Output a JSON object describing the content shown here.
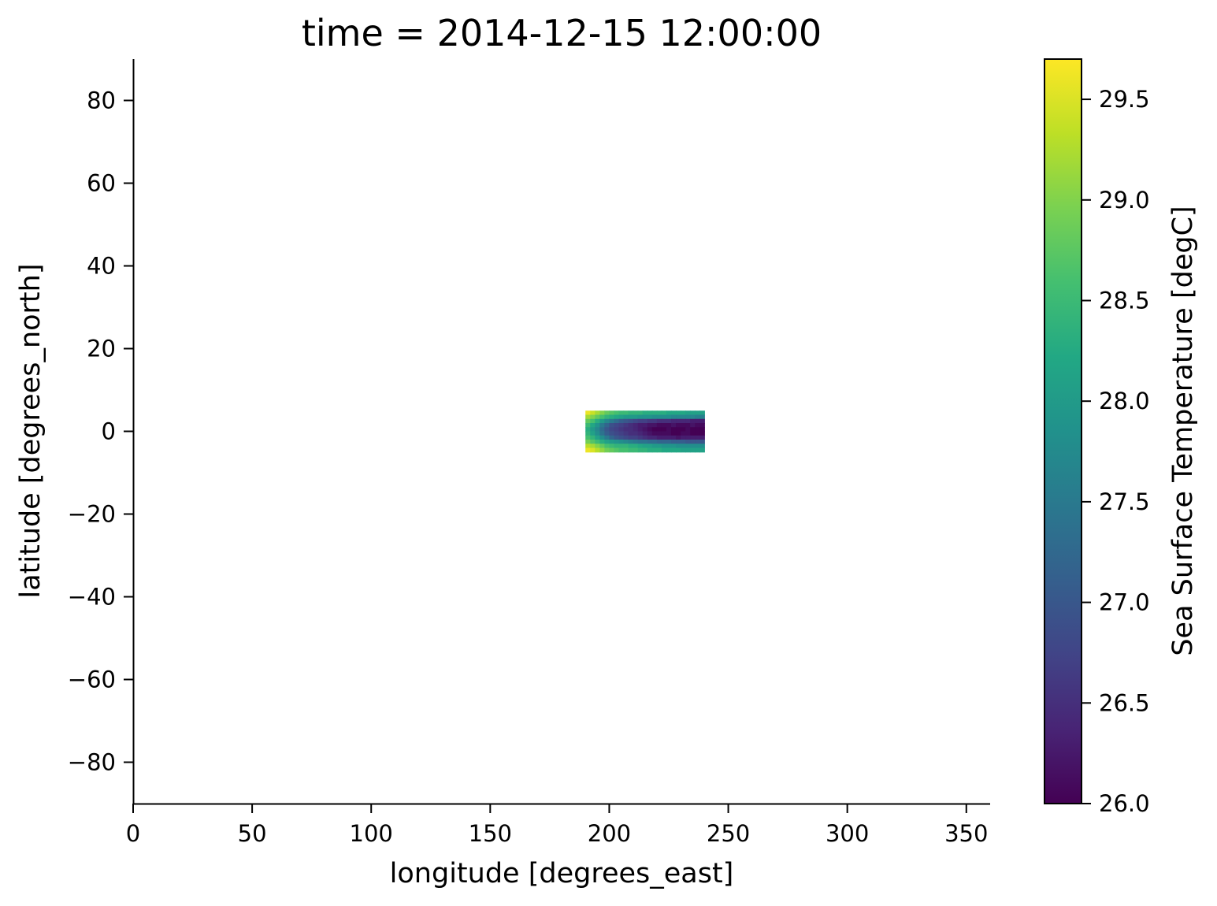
{
  "chart_data": {
    "type": "heatmap",
    "title": "time = 2014-12-15 12:00:00",
    "xlabel": "longitude [degrees_east]",
    "ylabel": "latitude [degrees_north]",
    "xlim": [
      0,
      360
    ],
    "ylim": [
      -90,
      90
    ],
    "xticks": [
      0,
      50,
      100,
      150,
      200,
      250,
      300,
      350
    ],
    "yticks": [
      80,
      60,
      40,
      20,
      0,
      -20,
      -40,
      -60,
      -80
    ],
    "xtick_labels": [
      "0",
      "50",
      "100",
      "150",
      "200",
      "250",
      "300",
      "350"
    ],
    "ytick_labels": [
      "80",
      "60",
      "40",
      "20",
      "0",
      "−20",
      "−40",
      "−60",
      "−80"
    ],
    "colormap": "viridis",
    "colorbar": {
      "label": "Sea Surface Temperature [degC]",
      "vmin": 26.0,
      "vmax": 29.7,
      "ticks": [
        26.0,
        26.5,
        27.0,
        27.5,
        28.0,
        28.5,
        29.0,
        29.5
      ],
      "tick_labels": [
        "26.0",
        "26.5",
        "27.0",
        "27.5",
        "28.0",
        "28.5",
        "29.0",
        "29.5"
      ]
    },
    "grid": {
      "lon": [
        191,
        193,
        195,
        197,
        199,
        201,
        203,
        205,
        207,
        209,
        211,
        213,
        215,
        217,
        219,
        221,
        223,
        225,
        227,
        229,
        231,
        233,
        235,
        237,
        239
      ],
      "lat": [
        4.5,
        3.5,
        2.5,
        1.5,
        0.5,
        -0.5,
        -1.5,
        -2.5,
        -3.5,
        -4.5
      ],
      "values": [
        [
          29.6,
          29.4,
          29.2,
          29.0,
          28.8,
          28.7,
          28.6,
          28.5,
          28.5,
          28.4,
          28.4,
          28.4,
          28.3,
          28.3,
          28.3,
          28.3,
          28.3,
          28.2,
          28.2,
          28.2,
          28.2,
          28.1,
          28.1,
          28.1,
          28.1
        ],
        [
          29.2,
          29.0,
          28.8,
          28.6,
          28.4,
          28.3,
          28.2,
          28.1,
          28.0,
          28.0,
          28.0,
          27.9,
          27.9,
          27.9,
          27.8,
          27.8,
          27.8,
          27.8,
          27.7,
          27.7,
          27.7,
          27.7,
          27.7,
          27.6,
          27.6
        ],
        [
          28.8,
          28.6,
          28.3,
          28.0,
          27.7,
          27.5,
          27.3,
          27.1,
          27.0,
          26.9,
          26.8,
          26.7,
          26.7,
          26.6,
          26.6,
          26.5,
          26.5,
          26.5,
          26.4,
          26.4,
          26.4,
          26.4,
          26.3,
          26.3,
          26.3
        ],
        [
          28.5,
          28.2,
          27.9,
          27.5,
          27.2,
          26.9,
          26.8,
          26.7,
          26.6,
          26.5,
          26.4,
          26.3,
          26.3,
          26.2,
          26.2,
          26.1,
          26.1,
          26.1,
          26.2,
          26.1,
          26.1,
          26.1,
          26.2,
          26.1,
          26.1
        ],
        [
          28.3,
          28.0,
          27.7,
          27.3,
          27.0,
          26.8,
          26.7,
          26.6,
          26.5,
          26.5,
          26.4,
          26.3,
          26.2,
          26.1,
          26.0,
          26.0,
          26.0,
          26.1,
          26.0,
          26.0,
          26.0,
          26.1,
          26.0,
          26.0,
          26.0
        ],
        [
          28.4,
          28.1,
          27.8,
          27.4,
          27.1,
          26.9,
          26.8,
          26.7,
          26.6,
          26.5,
          26.5,
          26.4,
          26.3,
          26.2,
          26.1,
          26.1,
          26.1,
          26.1,
          26.0,
          26.0,
          26.1,
          26.1,
          26.0,
          26.0,
          26.0
        ],
        [
          28.6,
          28.4,
          28.1,
          27.8,
          27.5,
          27.2,
          27.0,
          26.9,
          26.8,
          26.7,
          26.7,
          26.6,
          26.5,
          26.4,
          26.4,
          26.3,
          26.3,
          26.3,
          26.3,
          26.2,
          26.3,
          26.3,
          26.3,
          26.3,
          26.3
        ],
        [
          28.9,
          28.7,
          28.5,
          28.3,
          28.1,
          28.0,
          27.9,
          27.8,
          27.7,
          27.6,
          27.5,
          27.4,
          27.4,
          27.3,
          27.3,
          27.2,
          27.2,
          27.2,
          27.1,
          27.1,
          27.1,
          27.0,
          27.0,
          27.0,
          27.0
        ],
        [
          29.3,
          29.2,
          29.0,
          28.8,
          28.6,
          28.5,
          28.4,
          28.4,
          28.4,
          28.3,
          28.3,
          28.2,
          28.1,
          28.1,
          28.0,
          28.0,
          27.9,
          27.9,
          27.9,
          27.8,
          27.8,
          27.8,
          27.8,
          27.8,
          27.8
        ],
        [
          29.6,
          29.5,
          29.3,
          29.1,
          28.9,
          28.8,
          28.7,
          28.6,
          28.6,
          28.5,
          28.5,
          28.4,
          28.4,
          28.3,
          28.3,
          28.3,
          28.2,
          28.2,
          28.2,
          28.2,
          28.1,
          28.1,
          28.1,
          28.1,
          28.1
        ]
      ]
    }
  }
}
